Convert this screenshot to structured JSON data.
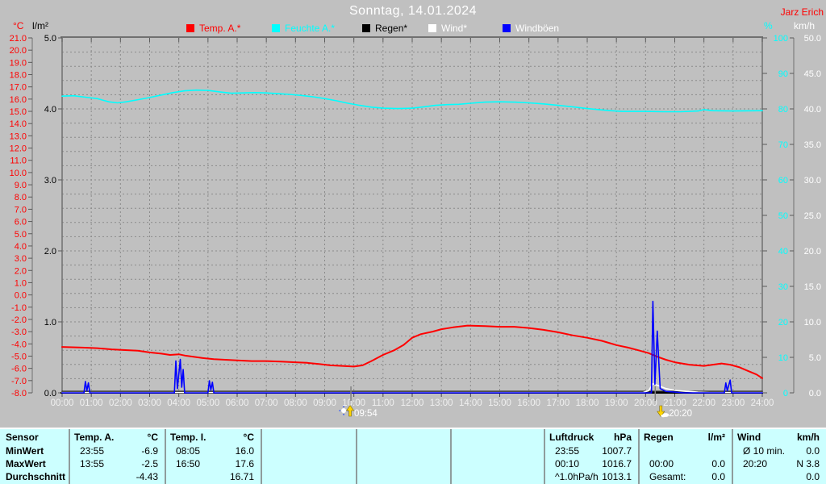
{
  "header": {
    "title": "Sonntag, 14.01.2024",
    "owner": "Jarz Erich"
  },
  "legend": {
    "items": [
      {
        "label": "Temp. A.*",
        "color": "#ff0000",
        "label_color": "#ff0000"
      },
      {
        "label": "Feuchte A.*",
        "color": "#00ffff",
        "label_color": "#00ffff"
      },
      {
        "label": "Regen*",
        "color": "#000000",
        "label_color": "#000000"
      },
      {
        "label": "Wind*",
        "color": "#ffffff",
        "label_color": "#ffffff"
      },
      {
        "label": "Windböen",
        "color": "#0000ff",
        "label_color": "#ffffff"
      }
    ]
  },
  "chart_data": {
    "type": "line",
    "title": "Sonntag, 14.01.2024",
    "x_axis": {
      "start_hour": 0,
      "end_hour": 24,
      "tick_step_hours": 1,
      "tick_suffix": ":00",
      "label_color": "#f0f0f0"
    },
    "axes": {
      "temp": {
        "unit": "°C",
        "min": -8,
        "max": 21,
        "tick_step": 1,
        "decimals": 1,
        "color": "#ff0000"
      },
      "rain": {
        "unit": "l/m²",
        "min": 0,
        "max": 5,
        "tick_step": 1,
        "decimals": 1,
        "color": "#000000"
      },
      "humidity": {
        "unit": "%",
        "min": 0,
        "max": 100,
        "tick_step": 10,
        "decimals": 0,
        "color": "#00ffff"
      },
      "wind": {
        "unit": "km/h",
        "min": 0,
        "max": 50,
        "tick_step": 5,
        "decimals": 1,
        "color": "#ffffff"
      }
    },
    "grid": {
      "color": "#8a8a8a",
      "style": "dashed",
      "h_divisions": 25,
      "v_divisions": 24
    },
    "series": [
      {
        "name": "Temp. A.*",
        "axis": "temp",
        "color": "#ff0000",
        "width": 2,
        "points": [
          [
            0,
            -4.25
          ],
          [
            0.7,
            -4.3
          ],
          [
            1.2,
            -4.35
          ],
          [
            1.7,
            -4.45
          ],
          [
            2.1,
            -4.5
          ],
          [
            2.6,
            -4.55
          ],
          [
            3.0,
            -4.7
          ],
          [
            3.4,
            -4.8
          ],
          [
            3.7,
            -4.9
          ],
          [
            4.0,
            -4.85
          ],
          [
            4.2,
            -4.95
          ],
          [
            4.5,
            -5.05
          ],
          [
            4.8,
            -5.15
          ],
          [
            5.2,
            -5.25
          ],
          [
            5.6,
            -5.3
          ],
          [
            6.0,
            -5.35
          ],
          [
            6.5,
            -5.4
          ],
          [
            7.0,
            -5.4
          ],
          [
            7.5,
            -5.45
          ],
          [
            8.0,
            -5.5
          ],
          [
            8.4,
            -5.55
          ],
          [
            8.8,
            -5.65
          ],
          [
            9.2,
            -5.75
          ],
          [
            9.6,
            -5.8
          ],
          [
            10.0,
            -5.85
          ],
          [
            10.3,
            -5.75
          ],
          [
            10.6,
            -5.4
          ],
          [
            11.0,
            -4.9
          ],
          [
            11.4,
            -4.5
          ],
          [
            11.7,
            -4.1
          ],
          [
            12.0,
            -3.5
          ],
          [
            12.3,
            -3.2
          ],
          [
            12.7,
            -3.0
          ],
          [
            13.0,
            -2.8
          ],
          [
            13.4,
            -2.65
          ],
          [
            13.9,
            -2.5
          ],
          [
            14.5,
            -2.55
          ],
          [
            15.0,
            -2.6
          ],
          [
            15.5,
            -2.6
          ],
          [
            16.0,
            -2.7
          ],
          [
            16.5,
            -2.85
          ],
          [
            17.0,
            -3.05
          ],
          [
            17.5,
            -3.3
          ],
          [
            18.0,
            -3.5
          ],
          [
            18.5,
            -3.75
          ],
          [
            19.0,
            -4.1
          ],
          [
            19.4,
            -4.3
          ],
          [
            19.8,
            -4.55
          ],
          [
            20.1,
            -4.75
          ],
          [
            20.4,
            -5.05
          ],
          [
            20.7,
            -5.3
          ],
          [
            21.0,
            -5.5
          ],
          [
            21.5,
            -5.7
          ],
          [
            22.0,
            -5.8
          ],
          [
            22.3,
            -5.7
          ],
          [
            22.6,
            -5.6
          ],
          [
            22.9,
            -5.7
          ],
          [
            23.2,
            -5.9
          ],
          [
            23.5,
            -6.2
          ],
          [
            23.8,
            -6.5
          ],
          [
            24,
            -6.8
          ]
        ]
      },
      {
        "name": "Feuchte A.*",
        "axis": "humidity",
        "color": "#00ffff",
        "width": 1.6,
        "points": [
          [
            0,
            83.6
          ],
          [
            0.4,
            83.7
          ],
          [
            0.8,
            83.3
          ],
          [
            1.2,
            82.9
          ],
          [
            1.6,
            82.0
          ],
          [
            1.9,
            81.7
          ],
          [
            2.2,
            82.0
          ],
          [
            2.6,
            82.6
          ],
          [
            3.0,
            83.2
          ],
          [
            3.4,
            83.9
          ],
          [
            3.8,
            84.6
          ],
          [
            4.2,
            85.1
          ],
          [
            4.6,
            85.3
          ],
          [
            5.0,
            85.2
          ],
          [
            5.4,
            84.8
          ],
          [
            5.8,
            84.4
          ],
          [
            6.2,
            84.5
          ],
          [
            6.6,
            84.6
          ],
          [
            7.0,
            84.5
          ],
          [
            7.4,
            84.3
          ],
          [
            7.8,
            84.1
          ],
          [
            8.2,
            83.8
          ],
          [
            8.6,
            83.4
          ],
          [
            9.0,
            82.9
          ],
          [
            9.4,
            82.3
          ],
          [
            9.8,
            81.6
          ],
          [
            10.2,
            81.0
          ],
          [
            10.6,
            80.5
          ],
          [
            11.0,
            80.2
          ],
          [
            11.5,
            80.1
          ],
          [
            12.0,
            80.2
          ],
          [
            12.4,
            80.6
          ],
          [
            12.8,
            81.0
          ],
          [
            13.2,
            81.2
          ],
          [
            13.6,
            81.3
          ],
          [
            14.0,
            81.6
          ],
          [
            14.5,
            81.9
          ],
          [
            15.0,
            82.0
          ],
          [
            15.5,
            81.9
          ],
          [
            16.0,
            81.7
          ],
          [
            16.5,
            81.4
          ],
          [
            17.0,
            81.0
          ],
          [
            17.5,
            80.6
          ],
          [
            18.0,
            80.1
          ],
          [
            18.4,
            79.8
          ],
          [
            18.8,
            79.5
          ],
          [
            19.2,
            79.3
          ],
          [
            20.0,
            79.3
          ],
          [
            20.6,
            79.2
          ],
          [
            21.2,
            79.2
          ],
          [
            21.8,
            79.4
          ],
          [
            22.0,
            79.8
          ],
          [
            22.3,
            79.5
          ],
          [
            23.0,
            79.4
          ],
          [
            24,
            79.5
          ]
        ]
      },
      {
        "name": "Regen*",
        "axis": "rain",
        "color": "#000000",
        "width": 1.3,
        "points": [
          [
            0,
            0.02
          ],
          [
            24,
            0.02
          ]
        ]
      },
      {
        "name": "Wind*",
        "axis": "wind",
        "color": "#ffffff",
        "width": 1.6,
        "points": [
          [
            0,
            0.05
          ],
          [
            19.9,
            0.05
          ],
          [
            20.1,
            0.3
          ],
          [
            20.25,
            1.3
          ],
          [
            20.45,
            1.0
          ],
          [
            20.7,
            0.6
          ],
          [
            21.0,
            0.35
          ],
          [
            21.4,
            0.2
          ],
          [
            21.8,
            0.1
          ],
          [
            22.2,
            0.05
          ],
          [
            24,
            0.05
          ]
        ]
      },
      {
        "name": "Windböen",
        "axis": "wind",
        "color": "#0000ff",
        "width": 1.6,
        "points": [
          [
            0,
            0
          ],
          [
            0.75,
            0
          ],
          [
            0.8,
            1.6
          ],
          [
            0.85,
            0.3
          ],
          [
            0.9,
            1.4
          ],
          [
            0.95,
            0
          ],
          [
            3.85,
            0
          ],
          [
            3.9,
            4.5
          ],
          [
            3.95,
            0.6
          ],
          [
            4.05,
            4.7
          ],
          [
            4.1,
            0.8
          ],
          [
            4.15,
            3.3
          ],
          [
            4.2,
            0
          ],
          [
            5.0,
            0
          ],
          [
            5.05,
            1.7
          ],
          [
            5.1,
            0.4
          ],
          [
            5.15,
            1.5
          ],
          [
            5.2,
            0
          ],
          [
            20.2,
            0
          ],
          [
            20.25,
            12.9
          ],
          [
            20.32,
            1.2
          ],
          [
            20.4,
            8.7
          ],
          [
            20.5,
            0.6
          ],
          [
            20.7,
            0.2
          ],
          [
            21.3,
            0
          ],
          [
            22.7,
            0
          ],
          [
            22.75,
            1.4
          ],
          [
            22.8,
            0.3
          ],
          [
            22.9,
            1.8
          ],
          [
            22.95,
            0
          ],
          [
            24,
            0
          ]
        ]
      }
    ],
    "markers": [
      {
        "label": "09:54",
        "t": 9.9,
        "icon": "sun"
      },
      {
        "label": "20:20",
        "t": 20.33,
        "icon": "wind"
      }
    ]
  },
  "table": {
    "row_labels": [
      "Sensor",
      "MinWert",
      "MaxWert",
      "Durchschnitt"
    ],
    "columns": [
      {
        "title": "Temp. A.",
        "unit": "°C",
        "rows": [
          [
            "23:55",
            "-6.9"
          ],
          [
            "13:55",
            "-2.5"
          ],
          [
            "",
            "-4.43"
          ]
        ]
      },
      {
        "title": "Temp. I.",
        "unit": "°C",
        "rows": [
          [
            "08:05",
            "16.0"
          ],
          [
            "16:50",
            "17.6"
          ],
          [
            "",
            "16.71"
          ]
        ]
      },
      {
        "title": "",
        "unit": "",
        "rows": [
          [
            "",
            ""
          ],
          [
            "",
            ""
          ],
          [
            "",
            ""
          ]
        ]
      },
      {
        "title": "",
        "unit": "",
        "rows": [
          [
            "",
            ""
          ],
          [
            "",
            ""
          ],
          [
            "",
            ""
          ]
        ]
      },
      {
        "title": "",
        "unit": "",
        "rows": [
          [
            "",
            ""
          ],
          [
            "",
            ""
          ],
          [
            "",
            ""
          ]
        ]
      },
      {
        "title": "Luftdruck",
        "unit": "hPa",
        "rows": [
          [
            "23:55",
            "1007.7"
          ],
          [
            "00:10",
            "1016.7"
          ],
          [
            "^1.0hPa/h",
            "1013.1"
          ]
        ]
      },
      {
        "title": "Regen",
        "unit": "l/m²",
        "rows": [
          [
            "",
            ""
          ],
          [
            "00:00",
            "0.0"
          ],
          [
            "Gesamt:",
            "0.0"
          ]
        ]
      },
      {
        "title": "Wind",
        "unit": "km/h",
        "rows": [
          [
            "Ø 10 min.",
            "0.0"
          ],
          [
            "20:20",
            "N 3.8"
          ],
          [
            "",
            "0.0"
          ]
        ]
      }
    ]
  },
  "colors": {
    "background": "#c0c0c0",
    "title_text": "#ffffff",
    "owner_text": "#ff0000",
    "grid": "#8a8a8a",
    "plot_border": "#707070",
    "bottom_axis": "#000000",
    "table_background": "#ccffff",
    "table_separator": "#8f9c9c",
    "marker_line": "#808080",
    "marker_arrow": "#ffd400"
  }
}
